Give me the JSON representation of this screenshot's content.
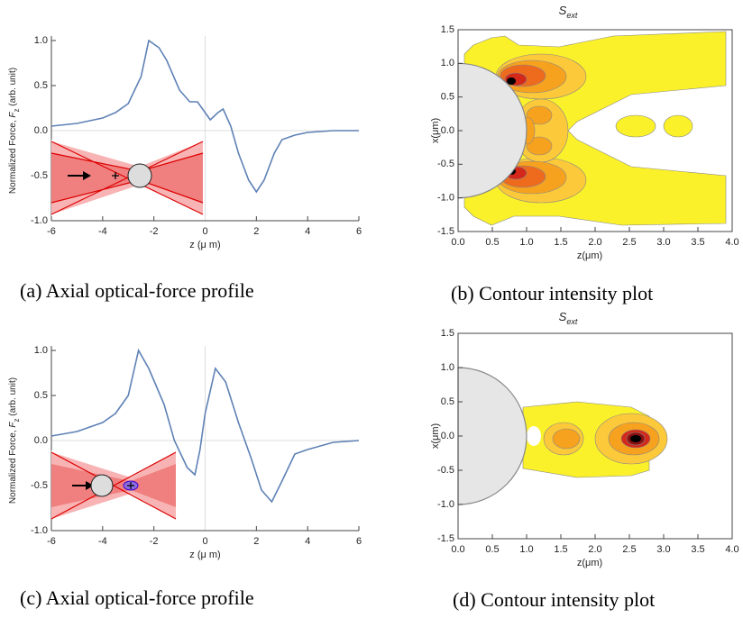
{
  "chart_data": [
    {
      "type": "line",
      "caption": "(a) Axial optical-force profile",
      "xlabel": "z (μ m)",
      "ylabel_parts": [
        "Normalized Force, ",
        "F",
        "z",
        " (arb. unit)"
      ],
      "x": [
        -6,
        -5,
        -4,
        -3.5,
        -3,
        -2.5,
        -2.2,
        -1.8,
        -1.5,
        -1,
        -0.6,
        -0.3,
        0,
        0.2,
        0.5,
        0.7,
        1,
        1.3,
        1.7,
        2,
        2.3,
        2.7,
        3,
        3.5,
        4,
        5,
        6
      ],
      "values": [
        0.05,
        0.08,
        0.14,
        0.2,
        0.3,
        0.6,
        1.0,
        0.92,
        0.78,
        0.45,
        0.32,
        0.32,
        0.2,
        0.12,
        0.2,
        0.24,
        0.05,
        -0.25,
        -0.55,
        -0.68,
        -0.55,
        -0.25,
        -0.1,
        -0.05,
        -0.02,
        0,
        0
      ],
      "color": "#5e81b5",
      "xlim": [
        -6,
        6
      ],
      "ylim": [
        -1,
        1
      ],
      "xticks": [
        -6,
        -4,
        -2,
        0,
        2,
        4,
        6
      ],
      "yticks": [
        {
          "value": 1,
          "label": "1.0"
        },
        0.5,
        {
          "value": 0,
          "label": "0.0"
        },
        -0.5,
        {
          "value": -1,
          "label": "-1.0"
        }
      ]
    },
    {
      "type": "contour",
      "caption": "(b) Contour intensity plot",
      "title": "S",
      "title_sub": "ext",
      "xlabel": "z(μm)",
      "ylabel": "x(μm)",
      "xlim": [
        0,
        4
      ],
      "ylim": [
        -1.5,
        1.5
      ],
      "xticks": [
        {
          "value": 0,
          "label": "0.0"
        },
        0.5,
        {
          "value": 1,
          "label": "1.0"
        },
        1.5,
        {
          "value": 2,
          "label": "2.0"
        },
        2.5,
        {
          "value": 3,
          "label": "3.0"
        },
        3.5,
        {
          "value": 4,
          "label": "4.0"
        }
      ],
      "yticks": [
        1.5,
        {
          "value": 1,
          "label": "1.0"
        },
        0.5,
        {
          "value": 0,
          "label": "0.0"
        },
        -0.5,
        {
          "value": -1,
          "label": "-1.0"
        },
        -1.5
      ]
    },
    {
      "type": "line",
      "caption": "(c) Axial optical-force profile",
      "xlabel": "z (μ m)",
      "ylabel_parts": [
        "Normalized Force, ",
        "F",
        "z",
        " (arb. unit)"
      ],
      "x": [
        -6,
        -5,
        -4,
        -3.5,
        -3,
        -2.6,
        -2.2,
        -1.6,
        -1.2,
        -0.7,
        -0.4,
        -0.2,
        0,
        0.4,
        0.8,
        1.3,
        1.8,
        2.2,
        2.6,
        3,
        3.5,
        4,
        5,
        6
      ],
      "values": [
        0.05,
        0.1,
        0.2,
        0.3,
        0.5,
        1.0,
        0.8,
        0.4,
        0.0,
        -0.3,
        -0.38,
        -0.1,
        0.3,
        0.8,
        0.65,
        0.2,
        -0.2,
        -0.55,
        -0.68,
        -0.45,
        -0.15,
        -0.1,
        -0.02,
        0
      ],
      "color": "#5e81b5",
      "xlim": [
        -6,
        6
      ],
      "ylim": [
        -1,
        1
      ],
      "xticks": [
        -6,
        -4,
        -2,
        0,
        2,
        4,
        6
      ],
      "yticks": [
        {
          "value": 1,
          "label": "1.0"
        },
        0.5,
        {
          "value": 0,
          "label": "0.0"
        },
        -0.5,
        {
          "value": -1,
          "label": "-1.0"
        }
      ]
    },
    {
      "type": "contour",
      "caption": "(d) Contour intensity plot",
      "title": "S",
      "title_sub": "ext",
      "xlabel": "z(μm)",
      "ylabel": "x(μm)",
      "xlim": [
        0,
        4
      ],
      "ylim": [
        -1.5,
        1.5
      ],
      "xticks": [
        {
          "value": 0,
          "label": "0.0"
        },
        0.5,
        {
          "value": 1,
          "label": "1.0"
        },
        1.5,
        {
          "value": 2,
          "label": "2.0"
        },
        2.5,
        {
          "value": 3,
          "label": "3.0"
        },
        3.5,
        {
          "value": 4,
          "label": "4.0"
        }
      ],
      "yticks": [
        1.5,
        {
          "value": 1,
          "label": "1.0"
        },
        0.5,
        {
          "value": 0,
          "label": "0.0"
        },
        -0.5,
        {
          "value": -1,
          "label": "-1.0"
        },
        -1.5
      ]
    }
  ]
}
